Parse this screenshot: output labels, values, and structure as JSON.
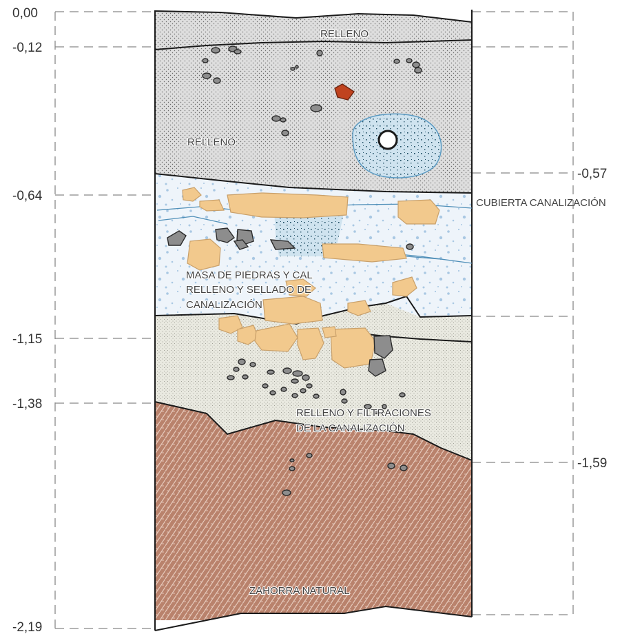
{
  "left_depths": [
    "0,00",
    "-0,12",
    "-0,64",
    "-1,15",
    "-1,38",
    "-2,19"
  ],
  "right_depths": [
    "-0,57",
    "-1,59"
  ],
  "layers": {
    "relleno_top": "RELLENO",
    "relleno": "RELLENO",
    "masa": [
      "MASA DE PIEDRAS Y CAL",
      "RELLENO Y SELLADO DE",
      "CANALIZACIÓN"
    ],
    "cubierta": "CUBIERTA CANALIZACIÓN",
    "filtraciones": [
      "RELLENO Y FILTRACIONES",
      "DE LA CANALIZACIÓN"
    ],
    "zahorra": "ZAHORRA NATURAL"
  },
  "colors": {
    "relleno": "#dedede",
    "masa_cal": "#eef4fa",
    "lime_spots": "#a9c8e3",
    "filtraciones": "#e9e9e0",
    "zahorra": "#b9826c",
    "zahorra_hatch": "#e6c9bb",
    "stone": "#8d8d8d",
    "limestone_block": "#f2c98d",
    "brick": "#c0431f",
    "pipe_fill": "#cfe3ef",
    "pipe_dots": "#1e4d63"
  }
}
